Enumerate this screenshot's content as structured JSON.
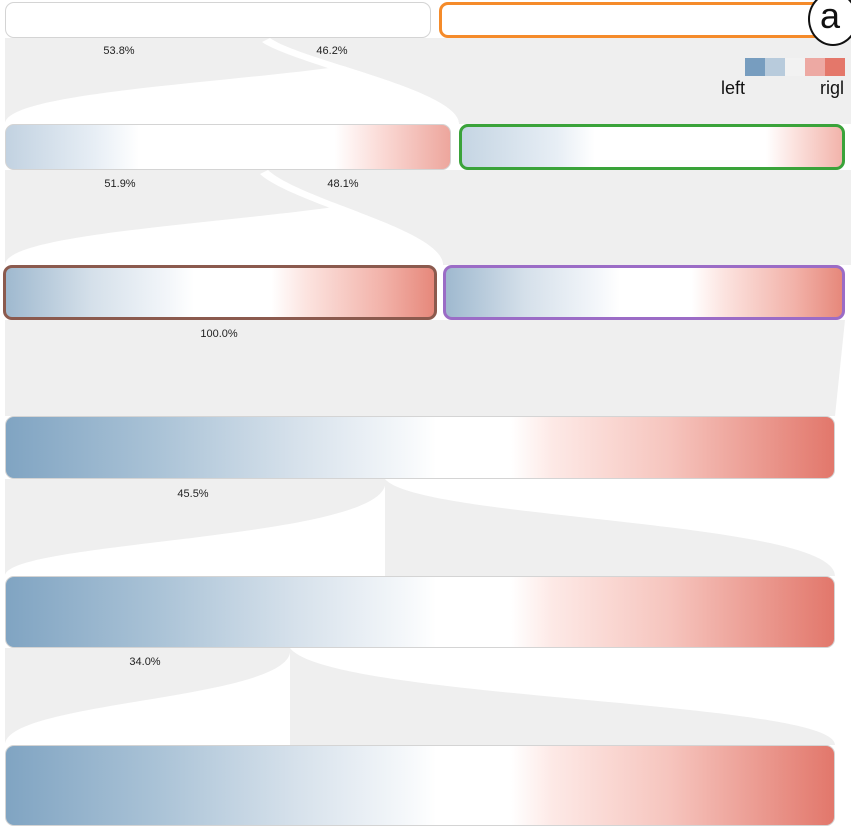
{
  "percentages": {
    "level1_left": "53.8%",
    "level1_right": "46.2%",
    "level2_left": "51.9%",
    "level2_right": "48.1%",
    "level3": "100.0%",
    "level4": "45.5%",
    "level5": "34.0%"
  },
  "legend": {
    "left_label": "left",
    "right_label": "rigl",
    "colors": [
      "#779dbf",
      "#b8cbdc",
      "#f2f2f2",
      "#eda9a3",
      "#e4776a"
    ]
  },
  "badge": {
    "label": "a"
  },
  "colors": {
    "orange": "#f58b2a",
    "green": "#3aa33a",
    "brown": "#8b5a4e",
    "purple": "#9b6cc6",
    "flow": "#efefef"
  }
}
